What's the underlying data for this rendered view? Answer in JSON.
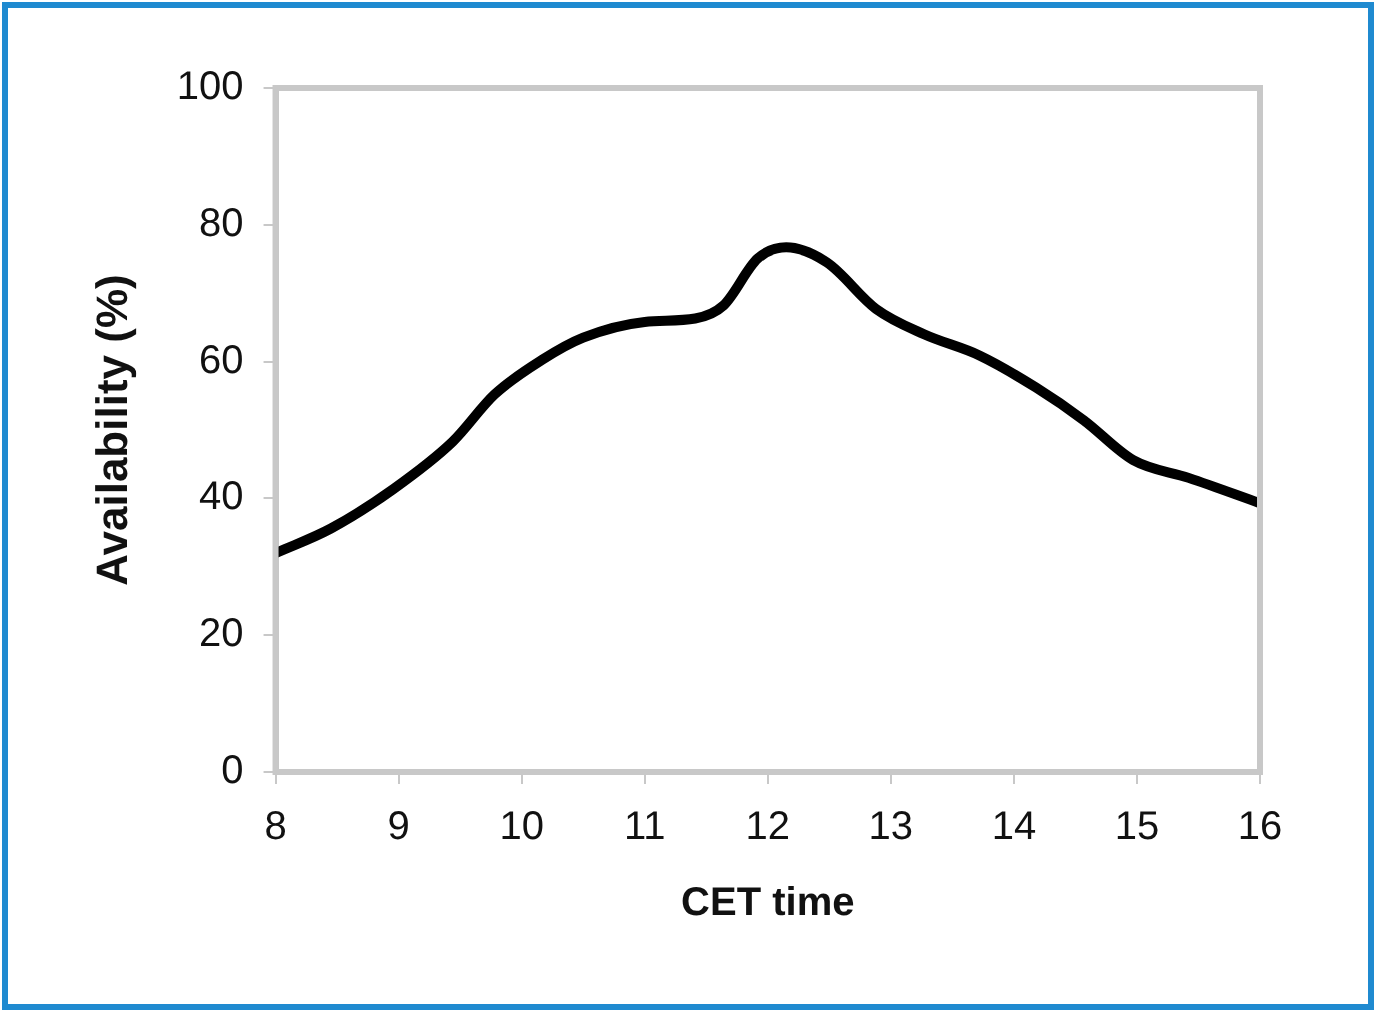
{
  "chart_data": {
    "type": "line",
    "xlabel": "CET time",
    "ylabel": "Availability (%)",
    "x": [
      8,
      8.45,
      8.96,
      9.44,
      9.78,
      10.17,
      10.5,
      11.0,
      11.41,
      11.64,
      11.92,
      12.15,
      12.48,
      12.88,
      13.27,
      13.72,
      14.18,
      14.57,
      14.97,
      15.42,
      16
    ],
    "series": [
      {
        "color": "#000000",
        "values": [
          32.0,
          35.6,
          41.4,
          48.3,
          55.2,
          60.3,
          63.5,
          65.8,
          66.3,
          68.2,
          75.1,
          76.7,
          74.5,
          67.7,
          64.0,
          60.9,
          56.2,
          51.4,
          45.6,
          43.0,
          39.3
        ]
      }
    ],
    "xlim": [
      8,
      16
    ],
    "xticks": [
      8,
      9,
      10,
      11,
      12,
      13,
      14,
      15,
      16
    ],
    "ylim": [
      0,
      100
    ],
    "yticks": [
      0,
      20,
      40,
      60,
      80,
      100
    ],
    "grid": false,
    "legend": false,
    "marker": "none",
    "line_style": "solid"
  }
}
